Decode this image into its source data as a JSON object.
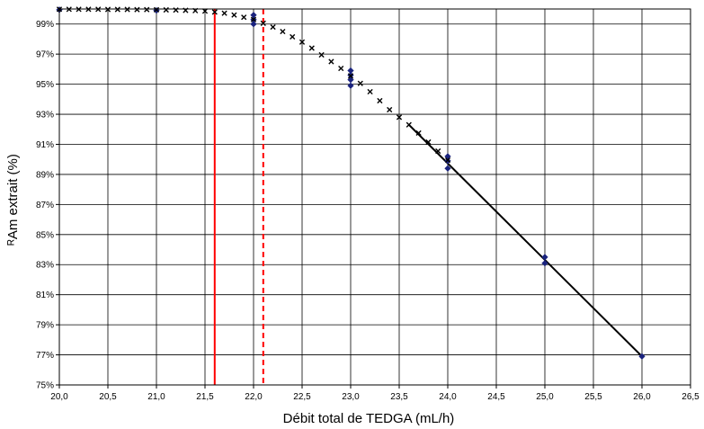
{
  "chart_data": {
    "type": "scatter",
    "title": "",
    "xlabel": "Débit total de TEDGA (mL/h)",
    "ylabel": "ᴿAm extrait  (%)",
    "xlim": [
      20.0,
      26.5
    ],
    "ylim": [
      75,
      100
    ],
    "x_ticks": [
      20.0,
      20.5,
      21.0,
      21.5,
      22.0,
      22.5,
      23.0,
      23.5,
      24.0,
      24.5,
      25.0,
      25.5,
      26.0,
      26.5
    ],
    "x_tick_labels": [
      "20,0",
      "20,5",
      "21,0",
      "21,5",
      "22,0",
      "22,5",
      "23,0",
      "23,5",
      "24,0",
      "24,5",
      "25,0",
      "25,5",
      "26,0",
      "26,5"
    ],
    "y_ticks": [
      75,
      77,
      79,
      81,
      83,
      85,
      87,
      89,
      91,
      93,
      95,
      97,
      99
    ],
    "y_tick_labels": [
      "75%",
      "77%",
      "79%",
      "81%",
      "83%",
      "85%",
      "87%",
      "89%",
      "91%",
      "93%",
      "95%",
      "97%",
      "99%"
    ],
    "grid": {
      "vertical": true,
      "horizontal": true
    },
    "legend": "none",
    "colors": {
      "measured": "#1a237e",
      "model": "#000000",
      "ref_line": "#ff0000",
      "grid": "#000000"
    },
    "series": [
      {
        "marker": "diamond",
        "color": "#1a237e",
        "points": [
          [
            20.0,
            99.95
          ],
          [
            21.0,
            99.9
          ],
          [
            22.0,
            99.6
          ],
          [
            22.0,
            99.3
          ],
          [
            22.0,
            99.0
          ],
          [
            23.0,
            95.9
          ],
          [
            23.0,
            95.6
          ],
          [
            23.0,
            95.3
          ],
          [
            23.0,
            94.9
          ],
          [
            24.0,
            90.2
          ],
          [
            24.0,
            89.9
          ],
          [
            24.0,
            89.4
          ],
          [
            25.0,
            83.5
          ],
          [
            25.0,
            83.1
          ],
          [
            26.0,
            76.9
          ]
        ]
      },
      {
        "marker": "x",
        "color": "#000000",
        "points": [
          [
            20.0,
            99.98
          ],
          [
            20.1,
            99.98
          ],
          [
            20.2,
            99.98
          ],
          [
            20.3,
            99.98
          ],
          [
            20.4,
            99.98
          ],
          [
            20.5,
            99.97
          ],
          [
            20.6,
            99.97
          ],
          [
            20.7,
            99.97
          ],
          [
            20.8,
            99.96
          ],
          [
            20.9,
            99.96
          ],
          [
            21.0,
            99.95
          ],
          [
            21.1,
            99.94
          ],
          [
            21.2,
            99.93
          ],
          [
            21.3,
            99.91
          ],
          [
            21.4,
            99.89
          ],
          [
            21.5,
            99.86
          ],
          [
            21.6,
            99.8
          ],
          [
            21.7,
            99.72
          ],
          [
            21.8,
            99.6
          ],
          [
            21.9,
            99.45
          ],
          [
            22.0,
            99.3
          ],
          [
            22.1,
            99.05
          ],
          [
            22.2,
            98.8
          ],
          [
            22.3,
            98.5
          ],
          [
            22.4,
            98.15
          ],
          [
            22.5,
            97.8
          ],
          [
            22.6,
            97.4
          ],
          [
            22.7,
            96.95
          ],
          [
            22.8,
            96.5
          ],
          [
            22.9,
            96.05
          ],
          [
            23.0,
            95.55
          ],
          [
            23.1,
            95.05
          ],
          [
            23.2,
            94.5
          ],
          [
            23.3,
            93.9
          ],
          [
            23.4,
            93.3
          ],
          [
            23.5,
            92.8
          ],
          [
            23.6,
            92.3
          ],
          [
            23.7,
            91.75
          ],
          [
            23.8,
            91.15
          ],
          [
            23.9,
            90.55
          ],
          [
            24.0,
            89.95
          ]
        ]
      }
    ],
    "fit_line": [
      [
        23.6,
        92.3
      ],
      [
        26.0,
        76.9
      ]
    ],
    "reference_lines": [
      {
        "x": 21.6,
        "style": "solid",
        "color": "#ff0000"
      },
      {
        "x": 22.1,
        "style": "dashed",
        "color": "#ff0000"
      }
    ]
  }
}
